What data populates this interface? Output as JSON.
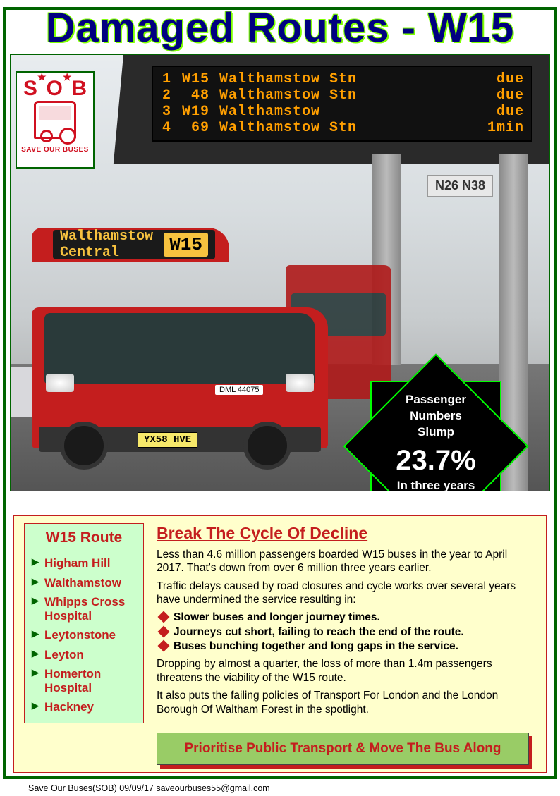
{
  "title": "Damaged Routes - W15",
  "logo": {
    "s": "S",
    "o": "O",
    "b": "B",
    "tag": "SAVE OUR BUSES"
  },
  "pid": {
    "rows": [
      {
        "n": "1",
        "route": "W15",
        "dest": "Walthamstow Stn",
        "eta": "due"
      },
      {
        "n": "2",
        "route": "48",
        "dest": "Walthamstow Stn",
        "eta": "due"
      },
      {
        "n": "3",
        "route": "W19",
        "dest": "Walthamstow",
        "eta": "due"
      },
      {
        "n": "4",
        "route": "69",
        "dest": "Walthamstow Stn",
        "eta": "1min"
      }
    ],
    "text_color": "#ff9f00",
    "bg_color": "#111111"
  },
  "night_sign": "N26  N38",
  "bus": {
    "dest": "Walthamstow Central",
    "route": "W15",
    "fleet": "DML 44075",
    "plate": "YX58 HVE",
    "body_color": "#c41e1e"
  },
  "starburst": {
    "line1": "Passenger",
    "line2": "Numbers",
    "line3": "Slump",
    "pct": "23.7%",
    "line4": "In three years",
    "bg": "#000000",
    "border": "#00ff00",
    "text": "#ffffff"
  },
  "route_box": {
    "title": "W15 Route",
    "stops": [
      "Higham Hill",
      "Walthamstow",
      "Whipps Cross Hospital",
      "Leytonstone",
      "Leyton",
      "Homerton Hospital",
      "Hackney"
    ],
    "bg": "#ccffcc",
    "title_color": "#c41e1e",
    "stop_color": "#c41e1e",
    "marker_color": "#006400"
  },
  "article": {
    "heading": "Break The Cycle Of Decline",
    "p1": "Less than 4.6 million passengers boarded W15 buses in the year to April 2017. That's down from over 6 million three years earlier.",
    "p2": "Traffic delays caused by road closures and cycle works over several years have undermined the service resulting in:",
    "bullets": [
      "Slower buses and longer journey times.",
      "Journeys cut short, failing to reach the end of the route.",
      "Buses bunching together and long gaps in the service."
    ],
    "p3": "Dropping by almost a quarter, the loss of more than 1.4m passengers threatens the viability of the W15 route.",
    "p4": "It also puts the failing policies of Transport For London and the London Borough Of Waltham Forest in the spotlight.",
    "cta": "Prioritise Public Transport & Move The Bus Along",
    "heading_color": "#c41e1e",
    "bullet_marker": "#c41e1e",
    "cta_bg": "#99cc66",
    "cta_shadow": "#c41e1e"
  },
  "lower_bg": "#ffffcc",
  "page_border": "#006400",
  "title_color": "#000080",
  "title_glow": "#7fff00",
  "footer": "Save Our Buses(SOB)  09/09/17   saveourbuses55@gmail.com"
}
